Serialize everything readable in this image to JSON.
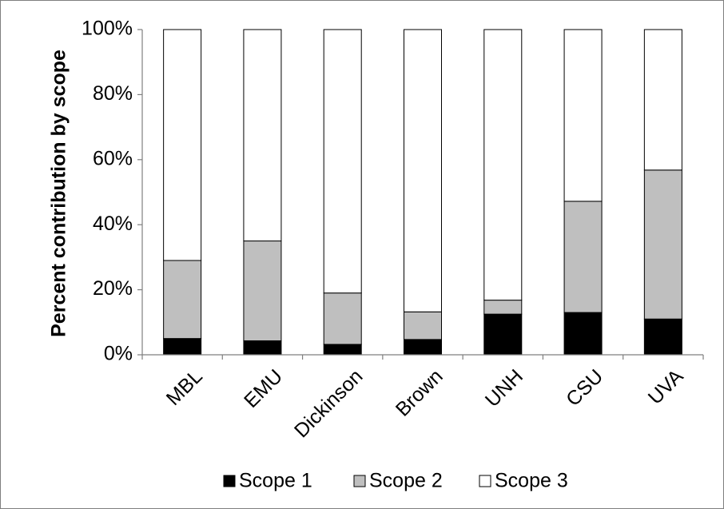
{
  "chart_data": {
    "type": "bar",
    "stacked": true,
    "percent_stacked": true,
    "title": "",
    "xlabel": "",
    "ylabel": "Percent contribution by scope",
    "ylim": [
      0,
      100
    ],
    "yticks": [
      "0%",
      "20%",
      "40%",
      "60%",
      "80%",
      "100%"
    ],
    "categories": [
      "MBL",
      "EMU",
      "Dickinson",
      "Brown",
      "UNH",
      "CSU",
      "UVA"
    ],
    "series": [
      {
        "name": "Scope 1",
        "color": "#000000",
        "values": [
          5,
          4.3,
          3.2,
          4.7,
          12.5,
          13,
          11
        ]
      },
      {
        "name": "Scope 2",
        "color": "#bfbfbf",
        "values": [
          24,
          30.7,
          15.8,
          8.5,
          4.3,
          34.2,
          45.8
        ]
      },
      {
        "name": "Scope 3",
        "color": "#ffffff",
        "values": [
          71,
          65,
          81,
          86.8,
          83.2,
          52.8,
          43.2
        ]
      }
    ],
    "legend_position": "bottom",
    "grid": false
  }
}
